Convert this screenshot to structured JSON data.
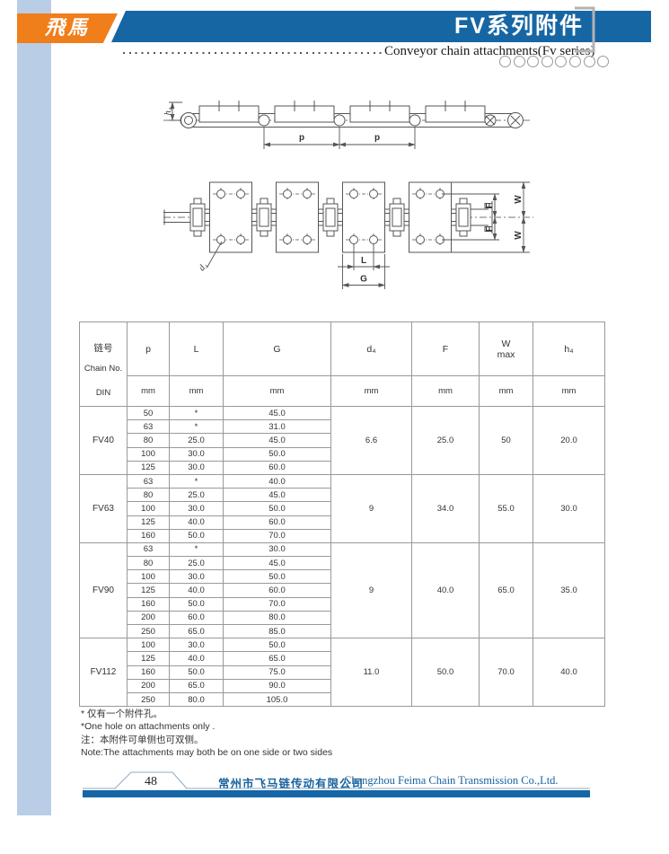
{
  "header": {
    "logo_text": "飛馬",
    "title": "FV系列附件",
    "subtitle": "Conveyor chain attachments(Fv series)"
  },
  "diagrams": {
    "h4": "h₄",
    "p": "p",
    "d4": "d₄",
    "L": "L",
    "G": "G",
    "F": "F",
    "W": "W"
  },
  "table": {
    "header": {
      "chain_col": [
        "链号",
        "Chain No.",
        "DIN"
      ],
      "cols": [
        "p",
        "L",
        "G",
        "d₄",
        "F",
        "W",
        "h₄"
      ],
      "w_sub": "max",
      "unit": "mm"
    },
    "sections": [
      {
        "chain_no": "FV40",
        "rows": [
          [
            "50",
            "*",
            "45.0"
          ],
          [
            "63",
            "*",
            "31.0"
          ],
          [
            "80",
            "25.0",
            "45.0"
          ],
          [
            "100",
            "30.0",
            "50.0"
          ],
          [
            "125",
            "30.0",
            "60.0"
          ]
        ],
        "d4": "6.6",
        "F": "25.0",
        "W": "50",
        "h4": "20.0"
      },
      {
        "chain_no": "FV63",
        "rows": [
          [
            "63",
            "*",
            "40.0"
          ],
          [
            "80",
            "25.0",
            "45.0"
          ],
          [
            "100",
            "30.0",
            "50.0"
          ],
          [
            "125",
            "40.0",
            "60.0"
          ],
          [
            "160",
            "50.0",
            "70.0"
          ]
        ],
        "d4": "9",
        "F": "34.0",
        "W": "55.0",
        "h4": "30.0"
      },
      {
        "chain_no": "FV90",
        "rows": [
          [
            "63",
            "*",
            "30.0"
          ],
          [
            "80",
            "25.0",
            "45.0"
          ],
          [
            "100",
            "30.0",
            "50.0"
          ],
          [
            "125",
            "40.0",
            "60.0"
          ],
          [
            "160",
            "50.0",
            "70.0"
          ],
          [
            "200",
            "60.0",
            "80.0"
          ],
          [
            "250",
            "65.0",
            "85.0"
          ]
        ],
        "d4": "9",
        "F": "40.0",
        "W": "65.0",
        "h4": "35.0"
      },
      {
        "chain_no": "FV112",
        "rows": [
          [
            "100",
            "30.0",
            "50.0"
          ],
          [
            "125",
            "40.0",
            "65.0"
          ],
          [
            "160",
            "50.0",
            "75.0"
          ],
          [
            "200",
            "65.0",
            "90.0"
          ],
          [
            "250",
            "80.0",
            "105.0"
          ]
        ],
        "d4": "11.0",
        "F": "50.0",
        "W": "70.0",
        "h4": "40.0"
      }
    ]
  },
  "notes": [
    "* 仅有一个附件孔。",
    "*One hole on attachments only .",
    "注：本附件可单侧也可双侧。",
    "Note:The attachments may both be on one side or two sides"
  ],
  "footer": {
    "page_number": "48",
    "company_cn": "常州市飞马链传动有限公司",
    "company_en": "Changzhou Feima Chain Transmission Co.,Ltd."
  },
  "colors": {
    "banner_blue": "#1766a4",
    "logo_orange": "#f07e1a",
    "sidebar_blue": "#b9cde6",
    "footer_blue": "#1565a7"
  }
}
